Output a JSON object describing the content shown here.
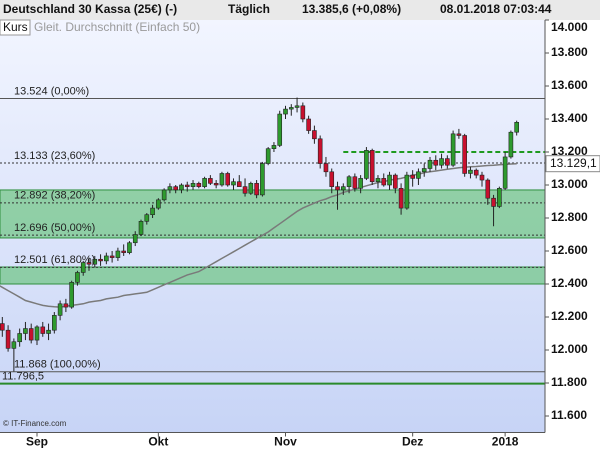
{
  "header": {
    "title": "Deutschland 30 Kassa (25€) (-)",
    "period": "Täglich",
    "quote": "13.385,6 (+0,08%)",
    "timestamp": "08.01.2018 07:03:44"
  },
  "chart_data": {
    "type": "candlestick",
    "source": "© IT-Finance.com",
    "series": [
      {
        "name": "Kurs",
        "type": "candlestick",
        "up_color": "#2e9a2e",
        "down_color": "#c8102e",
        "open": [
          12220,
          12160,
          12120,
          12010,
          12050,
          12100,
          12130,
          12060,
          12140,
          12100,
          12120,
          12210,
          12280,
          12260,
          12410,
          12470,
          12530,
          12520,
          12550,
          12540,
          12570,
          12560,
          12600,
          12590,
          12650,
          12700,
          12780,
          12820,
          12860,
          12910,
          12970,
          12990,
          12970,
          13000,
          12990,
          13010,
          12990,
          13040,
          13010,
          13000,
          13070,
          13000,
          13020,
          12990,
          12950,
          13010,
          12940,
          13130,
          13220,
          13240,
          13430,
          13460,
          13470,
          13480,
          13400,
          13330,
          13280,
          13130,
          13080,
          12990,
          12970,
          12990,
          13050,
          12980,
          13040,
          13210,
          13020,
          13040,
          13000,
          13060,
          12980,
          12860,
          13060,
          13040,
          13080,
          13100,
          13150,
          13120,
          13160,
          13120,
          13310,
          13300,
          13070,
          13090,
          13060,
          13030,
          12920,
          12870,
          12980,
          13170,
          13320
        ],
        "high": [
          12250,
          12200,
          12150,
          12070,
          12130,
          12170,
          12160,
          12150,
          12170,
          12160,
          12230,
          12300,
          12310,
          12420,
          12480,
          12540,
          12560,
          12570,
          12580,
          12590,
          12600,
          12620,
          12640,
          12660,
          12720,
          12790,
          12830,
          12880,
          12920,
          12980,
          13010,
          13000,
          13010,
          13020,
          13030,
          13020,
          13050,
          13060,
          13030,
          13080,
          13080,
          13040,
          13060,
          13040,
          13020,
          13030,
          13140,
          13230,
          13260,
          13450,
          13480,
          13490,
          13530,
          13500,
          13420,
          13360,
          13300,
          13170,
          13100,
          13020,
          13010,
          13060,
          13070,
          13060,
          13230,
          13220,
          13060,
          13070,
          13080,
          13070,
          13010,
          13080,
          13090,
          13100,
          13130,
          13170,
          13180,
          13190,
          13180,
          13330,
          13340,
          13310,
          13110,
          13100,
          13080,
          13040,
          12940,
          12990,
          13200,
          13330,
          13390
        ],
        "low": [
          12140,
          12080,
          11990,
          11870,
          12020,
          12060,
          12040,
          12030,
          12080,
          12060,
          12100,
          12180,
          12230,
          12250,
          12390,
          12450,
          12480,
          12500,
          12510,
          12520,
          12530,
          12540,
          12570,
          12580,
          12630,
          12690,
          12760,
          12800,
          12850,
          12900,
          12950,
          12950,
          12950,
          12960,
          12970,
          12980,
          12980,
          13000,
          12980,
          12990,
          12990,
          12970,
          13000,
          12930,
          12940,
          12920,
          12930,
          13120,
          13200,
          13230,
          13400,
          13420,
          13440,
          13380,
          13310,
          13250,
          13100,
          13050,
          12950,
          12850,
          12940,
          12950,
          12960,
          12950,
          13030,
          13000,
          12980,
          12990,
          12970,
          12950,
          12820,
          12850,
          12990,
          13000,
          13050,
          13080,
          13090,
          13100,
          13100,
          13110,
          13280,
          13050,
          13040,
          13040,
          12990,
          12880,
          12750,
          12860,
          12970,
          13160,
          13300
        ],
        "close": [
          12160,
          12120,
          12010,
          12050,
          12100,
          12130,
          12060,
          12140,
          12100,
          12120,
          12210,
          12280,
          12260,
          12410,
          12470,
          12530,
          12520,
          12550,
          12540,
          12570,
          12560,
          12600,
          12590,
          12650,
          12700,
          12780,
          12820,
          12860,
          12910,
          12970,
          12990,
          12970,
          13000,
          12990,
          13010,
          12990,
          13040,
          13010,
          13000,
          13070,
          13000,
          13020,
          12990,
          12950,
          13010,
          12940,
          13130,
          13220,
          13240,
          13430,
          13460,
          13470,
          13480,
          13400,
          13330,
          13280,
          13130,
          13080,
          12990,
          12970,
          12990,
          13050,
          12980,
          13040,
          13210,
          13020,
          13040,
          13000,
          13060,
          12980,
          12860,
          13060,
          13040,
          13080,
          13100,
          13150,
          13120,
          13160,
          13120,
          13310,
          13300,
          13070,
          13090,
          13060,
          13030,
          12920,
          12870,
          12980,
          13170,
          13320,
          13380
        ]
      },
      {
        "name": "Gleit. Durchschnitt (Einfach 50)",
        "type": "line",
        "color": "#7a7a7a",
        "values": [
          12400,
          12380,
          12360,
          12340,
          12320,
          12300,
          12290,
          12280,
          12270,
          12265,
          12262,
          12260,
          12265,
          12270,
          12275,
          12280,
          12290,
          12295,
          12300,
          12310,
          12315,
          12320,
          12330,
          12335,
          12340,
          12345,
          12350,
          12365,
          12380,
          12395,
          12410,
          12425,
          12440,
          12455,
          12465,
          12475,
          12495,
          12515,
          12535,
          12555,
          12575,
          12595,
          12615,
          12635,
          12655,
          12675,
          12695,
          12715,
          12740,
          12765,
          12790,
          12815,
          12840,
          12860,
          12875,
          12890,
          12905,
          12915,
          12930,
          12940,
          12955,
          12965,
          12975,
          12985,
          12995,
          13005,
          13015,
          13020,
          13030,
          13035,
          13040,
          13050,
          13060,
          13065,
          13075,
          13080,
          13085,
          13090,
          13095,
          13100,
          13105,
          13108,
          13110,
          13112,
          13115,
          13118,
          13120,
          13123,
          13125,
          13127,
          13129
        ]
      }
    ],
    "xlim": [
      0.6,
      94.9
    ],
    "xticks": [
      {
        "value": 7,
        "label": "Sep"
      },
      {
        "value": 28,
        "label": "Okt"
      },
      {
        "value": 50,
        "label": "Nov"
      },
      {
        "value": 72,
        "label": "Dez"
      },
      {
        "value": 88,
        "label": "2018"
      }
    ],
    "ylim": [
      11500,
      14000
    ],
    "yticks": [
      {
        "value": 11600,
        "label": "11.600"
      },
      {
        "value": 11800,
        "label": "11.800"
      },
      {
        "value": 12000,
        "label": "12.000"
      },
      {
        "value": 12200,
        "label": "12.200"
      },
      {
        "value": 12400,
        "label": "12.400"
      },
      {
        "value": 12600,
        "label": "12.600"
      },
      {
        "value": 12800,
        "label": "12.800"
      },
      {
        "value": 13000,
        "label": "13.000"
      },
      {
        "value": 13200,
        "label": "13.200"
      },
      {
        "value": 13400,
        "label": "13.400"
      },
      {
        "value": 13600,
        "label": "13.600"
      },
      {
        "value": 13800,
        "label": "13.800"
      },
      {
        "value": 14000,
        "label": "14.000"
      }
    ],
    "zones": [
      {
        "from": 12679,
        "to": 12970,
        "color": "#5cbf6e"
      },
      {
        "from": 12400,
        "to": 12503,
        "color": "#5cbf6e"
      }
    ],
    "levels": [
      {
        "value": 13524,
        "label": "13.524 (0,00%)",
        "style": "solid",
        "color": "#555555"
      },
      {
        "value": 13133,
        "label": "13.133 (23,60%)",
        "style": "dotted",
        "color": "#333333"
      },
      {
        "value": 12892,
        "label": "12.892 (38,20%)",
        "style": "dotted",
        "color": "#333333"
      },
      {
        "value": 12696,
        "label": "12.696 (50,00%)",
        "style": "dotted",
        "color": "#333333"
      },
      {
        "value": 12501,
        "label": "12.501 (61,80%)",
        "style": "dotted",
        "color": "#333333"
      },
      {
        "value": 11868,
        "label": "11.868 (100,00%)",
        "style": "solid",
        "color": "#555555"
      },
      {
        "value": 11796.5,
        "label": "11.796,5",
        "style": "solid",
        "color": "#2a8a2a"
      }
    ],
    "resistance": {
      "value": 13200,
      "from": 60,
      "color": "#1f9a1f"
    },
    "price_marker": {
      "value": 13129.1,
      "label": "13.129,1"
    }
  }
}
